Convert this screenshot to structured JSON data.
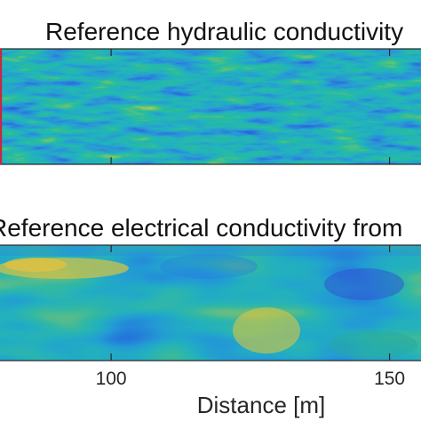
{
  "chart_data": [
    {
      "type": "heatmap",
      "title": "Reference hydraulic conductivity",
      "xlabel": "",
      "ylabel": "",
      "xlim": [
        70,
        170
      ],
      "xticks": [
        100,
        150
      ],
      "tick_labels_shown": false,
      "marker_line": {
        "x": 80,
        "color": "#c7283f"
      },
      "colormap": "parula",
      "colors": {
        "low": "#3b5fd9",
        "mid": "#20b2b8",
        "high": "#f2c63a"
      },
      "field": "fine horizontally stretched random field, mostly cyan-blue with scattered yellow-green streaks"
    },
    {
      "type": "heatmap",
      "title": "Reference electrical conductivity from",
      "xlabel": "Distance [m]",
      "ylabel": "",
      "xlim": [
        70,
        170
      ],
      "xticks": [
        100,
        150
      ],
      "xtick_labels": [
        "100",
        "150"
      ],
      "colormap": "parula",
      "colors": {
        "low": "#3b5fd9",
        "mid": "#20b2b8",
        "high": "#f2c63a"
      },
      "field": "smooth blocky field, cyan-teal background with a yellow band near top-left, yellow patch center-bottom, blue patches right"
    }
  ]
}
